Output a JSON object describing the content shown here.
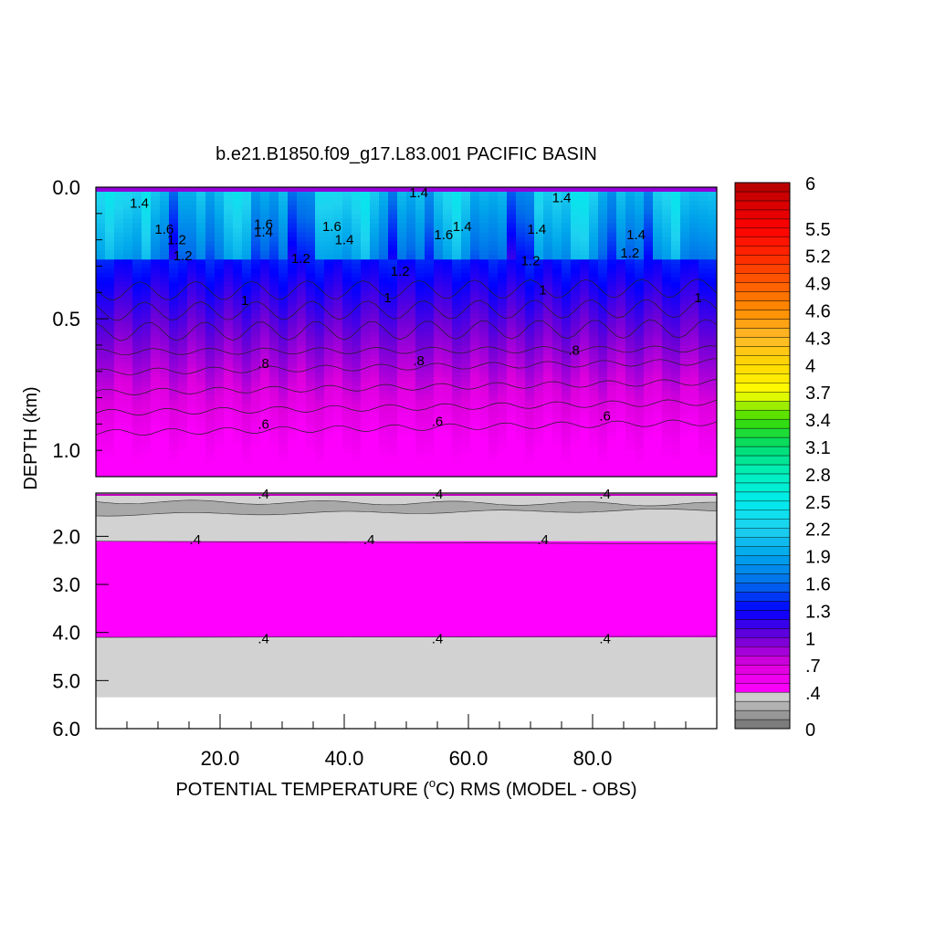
{
  "chart_data": {
    "type": "heatmap",
    "title": "b.e21.B1850.f09_g17.L83.001 PACIFIC BASIN",
    "xlabel": "POTENTIAL TEMPERATURE (",
    "xlabel_sup": "o",
    "xlabel_tail": "C) RMS (MODEL - OBS)",
    "ylabel": "DEPTH (km)",
    "xlim": [
      0,
      100
    ],
    "x_ticks": [
      "20.0",
      "40.0",
      "60.0",
      "80.0"
    ],
    "x_tick_values": [
      20,
      40,
      60,
      80
    ],
    "upper_panel": {
      "ylim": [
        0,
        1.1
      ],
      "y_ticks": [
        "0.0",
        "0.5",
        "1.0"
      ],
      "y_tick_values": [
        0,
        0.5,
        1.0
      ]
    },
    "lower_panel": {
      "ylim": [
        1.1,
        6.0
      ],
      "y_ticks": [
        "2.0",
        "3.0",
        "4.0",
        "5.0",
        "6.0"
      ],
      "y_tick_values": [
        2,
        3,
        4,
        5,
        6
      ]
    },
    "colorbar": {
      "min": 0,
      "max": 6,
      "labels": [
        "6",
        "5.5",
        "5.2",
        "4.9",
        "4.6",
        "4.3",
        "4",
        "3.7",
        "3.4",
        "3.1",
        "2.8",
        "2.5",
        "2.2",
        "1.9",
        "1.6",
        "1.3",
        "1",
        ".7",
        ".4",
        "0"
      ],
      "label_values": [
        6,
        5.5,
        5.2,
        4.9,
        4.6,
        4.3,
        4.0,
        3.7,
        3.4,
        3.1,
        2.8,
        2.5,
        2.2,
        1.9,
        1.6,
        1.3,
        1.0,
        0.7,
        0.4,
        0
      ]
    },
    "contour_labels": [
      {
        "text": "1.4",
        "x": 7,
        "depth": 0.06
      },
      {
        "text": "1.4",
        "x": 52,
        "depth": 0.02
      },
      {
        "text": "1.4",
        "x": 75,
        "depth": 0.04
      },
      {
        "text": "1.6",
        "x": 11,
        "depth": 0.16
      },
      {
        "text": "1.2",
        "x": 13,
        "depth": 0.2
      },
      {
        "text": "1.2",
        "x": 14,
        "depth": 0.26
      },
      {
        "text": "1.6",
        "x": 27,
        "depth": 0.14
      },
      {
        "text": "1.4",
        "x": 27,
        "depth": 0.17
      },
      {
        "text": "1.6",
        "x": 38,
        "depth": 0.15
      },
      {
        "text": "1.4",
        "x": 40,
        "depth": 0.2
      },
      {
        "text": "1.2",
        "x": 33,
        "depth": 0.27
      },
      {
        "text": "1.6",
        "x": 56,
        "depth": 0.18
      },
      {
        "text": "1.4",
        "x": 59,
        "depth": 0.15
      },
      {
        "text": "1.4",
        "x": 71,
        "depth": 0.16
      },
      {
        "text": "1.2",
        "x": 70,
        "depth": 0.28
      },
      {
        "text": "1.2",
        "x": 49,
        "depth": 0.32
      },
      {
        "text": "1.4",
        "x": 87,
        "depth": 0.18
      },
      {
        "text": "1.2",
        "x": 86,
        "depth": 0.25
      },
      {
        "text": "1",
        "x": 24,
        "depth": 0.43
      },
      {
        "text": "1",
        "x": 47,
        "depth": 0.42
      },
      {
        "text": "1",
        "x": 72,
        "depth": 0.39
      },
      {
        "text": "1",
        "x": 97,
        "depth": 0.42
      },
      {
        "text": ".8",
        "x": 27,
        "depth": 0.67
      },
      {
        "text": ".8",
        "x": 52,
        "depth": 0.66
      },
      {
        "text": ".8",
        "x": 77,
        "depth": 0.62
      },
      {
        "text": ".6",
        "x": 27,
        "depth": 0.9
      },
      {
        "text": ".6",
        "x": 55,
        "depth": 0.89
      },
      {
        "text": ".6",
        "x": 82,
        "depth": 0.87
      },
      {
        "text": ".4",
        "x": 27,
        "depth": 1.12
      },
      {
        "text": ".4",
        "x": 55,
        "depth": 1.12
      },
      {
        "text": ".4",
        "x": 82,
        "depth": 1.12
      },
      {
        "text": ".4",
        "x": 16,
        "depth": 2.07
      },
      {
        "text": ".4",
        "x": 44,
        "depth": 2.07
      },
      {
        "text": ".4",
        "x": 72,
        "depth": 2.07
      },
      {
        "text": ".4",
        "x": 27,
        "depth": 4.13
      },
      {
        "text": ".4",
        "x": 55,
        "depth": 4.13
      },
      {
        "text": ".4",
        "x": 82,
        "depth": 4.13
      }
    ]
  }
}
